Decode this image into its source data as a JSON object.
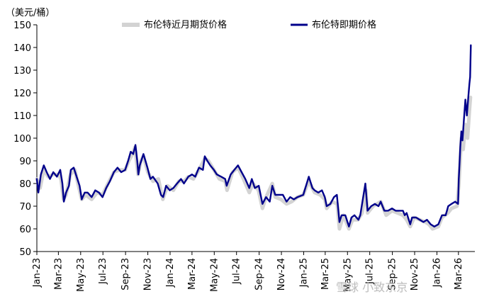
{
  "chart_data": {
    "type": "line",
    "title": "",
    "unit_label": "（美元/桶）",
    "ylim": [
      50,
      150
    ],
    "y_ticks": [
      50,
      60,
      70,
      80,
      90,
      100,
      110,
      120,
      130,
      140,
      150
    ],
    "x_tick_labels": [
      "Jan-23",
      "Mar-23",
      "May-23",
      "Jul-23",
      "Sep-23",
      "Nov-23",
      "Jan-24",
      "Mar-24",
      "May-24",
      "Jul-24",
      "Sep-24",
      "Nov-24",
      "Jan-25",
      "Mar-25",
      "May-25",
      "Jul-25",
      "Sep-25",
      "Nov-25",
      "Jan-26",
      "Mar-26"
    ],
    "x_range": [
      "2023-01-01",
      "2026-04-15"
    ],
    "grid": false,
    "legend_position": "top",
    "series": [
      {
        "name": "布伦特近月期货价格",
        "color": "#d3d3d3",
        "points": [
          [
            "2023-01-01",
            82
          ],
          [
            "2023-01-10",
            78
          ],
          [
            "2023-01-20",
            86
          ],
          [
            "2023-02-01",
            83
          ],
          [
            "2023-02-15",
            84
          ],
          [
            "2023-03-01",
            84
          ],
          [
            "2023-03-08",
            82
          ],
          [
            "2023-03-15",
            73
          ],
          [
            "2023-03-22",
            75
          ],
          [
            "2023-04-03",
            84
          ],
          [
            "2023-04-15",
            86
          ],
          [
            "2023-04-25",
            79
          ],
          [
            "2023-05-04",
            73
          ],
          [
            "2023-05-15",
            75
          ],
          [
            "2023-05-31",
            73
          ],
          [
            "2023-06-15",
            76
          ],
          [
            "2023-06-30",
            75
          ],
          [
            "2023-07-15",
            80
          ],
          [
            "2023-07-31",
            85
          ],
          [
            "2023-08-15",
            86
          ],
          [
            "2023-08-31",
            86
          ],
          [
            "2023-09-10",
            90
          ],
          [
            "2023-09-20",
            93
          ],
          [
            "2023-09-27",
            96
          ],
          [
            "2023-10-05",
            84
          ],
          [
            "2023-10-13",
            90
          ],
          [
            "2023-10-20",
            92
          ],
          [
            "2023-11-01",
            85
          ],
          [
            "2023-11-15",
            81
          ],
          [
            "2023-11-30",
            82
          ],
          [
            "2023-12-12",
            73
          ],
          [
            "2023-12-25",
            79
          ],
          [
            "2024-01-10",
            77
          ],
          [
            "2024-01-25",
            81
          ],
          [
            "2024-02-08",
            81
          ],
          [
            "2024-02-20",
            83
          ],
          [
            "2024-03-05",
            82
          ],
          [
            "2024-03-20",
            86
          ],
          [
            "2024-04-05",
            91
          ],
          [
            "2024-04-15",
            90
          ],
          [
            "2024-04-30",
            86
          ],
          [
            "2024-05-15",
            82
          ],
          [
            "2024-05-31",
            81
          ],
          [
            "2024-06-05",
            77
          ],
          [
            "2024-06-20",
            85
          ],
          [
            "2024-07-05",
            87
          ],
          [
            "2024-07-20",
            82
          ],
          [
            "2024-08-05",
            76
          ],
          [
            "2024-08-15",
            80
          ],
          [
            "2024-08-30",
            77
          ],
          [
            "2024-09-10",
            69
          ],
          [
            "2024-09-20",
            74
          ],
          [
            "2024-10-07",
            80
          ],
          [
            "2024-10-15",
            74
          ],
          [
            "2024-10-31",
            73
          ],
          [
            "2024-11-15",
            71
          ],
          [
            "2024-11-29",
            72
          ],
          [
            "2024-12-15",
            74
          ],
          [
            "2024-12-31",
            75
          ],
          [
            "2025-01-15",
            81
          ],
          [
            "2025-01-31",
            76
          ],
          [
            "2025-02-15",
            75
          ],
          [
            "2025-02-28",
            73
          ],
          [
            "2025-03-05",
            69
          ],
          [
            "2025-03-20",
            72
          ],
          [
            "2025-04-03",
            71
          ],
          [
            "2025-04-09",
            60
          ],
          [
            "2025-04-20",
            66
          ],
          [
            "2025-05-05",
            60
          ],
          [
            "2025-05-15",
            64
          ],
          [
            "2025-05-30",
            64
          ],
          [
            "2025-06-10",
            67
          ],
          [
            "2025-06-20",
            77
          ],
          [
            "2025-06-25",
            67
          ],
          [
            "2025-07-10",
            70
          ],
          [
            "2025-07-31",
            72
          ],
          [
            "2025-08-15",
            66
          ],
          [
            "2025-08-31",
            68
          ],
          [
            "2025-09-15",
            67
          ],
          [
            "2025-09-30",
            66
          ],
          [
            "2025-10-10",
            64
          ],
          [
            "2025-10-20",
            61
          ],
          [
            "2025-10-31",
            65
          ],
          [
            "2025-11-15",
            64
          ],
          [
            "2025-11-30",
            63
          ],
          [
            "2025-12-10",
            62
          ],
          [
            "2025-12-20",
            60
          ],
          [
            "2026-01-05",
            61
          ],
          [
            "2026-01-15",
            65
          ],
          [
            "2026-01-31",
            67
          ],
          [
            "2026-02-10",
            69
          ],
          [
            "2026-02-25",
            70
          ],
          [
            "2026-03-02",
            79
          ],
          [
            "2026-03-05",
            88
          ],
          [
            "2026-03-09",
            100
          ],
          [
            "2026-03-14",
            95
          ],
          [
            "2026-03-20",
            106
          ],
          [
            "2026-03-26",
            100
          ],
          [
            "2026-03-31",
            112
          ],
          [
            "2026-04-03",
            118
          ]
        ]
      },
      {
        "name": "布伦特即期价格",
        "color": "#00008b",
        "points": [
          [
            "2023-01-01",
            82
          ],
          [
            "2023-01-05",
            76
          ],
          [
            "2023-01-12",
            84
          ],
          [
            "2023-01-20",
            88
          ],
          [
            "2023-01-28",
            85
          ],
          [
            "2023-02-06",
            82
          ],
          [
            "2023-02-15",
            85
          ],
          [
            "2023-02-25",
            83
          ],
          [
            "2023-03-06",
            86
          ],
          [
            "2023-03-12",
            80
          ],
          [
            "2023-03-16",
            72
          ],
          [
            "2023-03-22",
            76
          ],
          [
            "2023-03-30",
            79
          ],
          [
            "2023-04-04",
            86
          ],
          [
            "2023-04-12",
            87
          ],
          [
            "2023-04-20",
            83
          ],
          [
            "2023-04-28",
            79
          ],
          [
            "2023-05-04",
            73
          ],
          [
            "2023-05-12",
            76
          ],
          [
            "2023-05-20",
            76
          ],
          [
            "2023-05-31",
            74
          ],
          [
            "2023-06-10",
            77
          ],
          [
            "2023-06-20",
            76
          ],
          [
            "2023-06-30",
            74
          ],
          [
            "2023-07-10",
            78
          ],
          [
            "2023-07-20",
            81
          ],
          [
            "2023-07-31",
            85
          ],
          [
            "2023-08-10",
            87
          ],
          [
            "2023-08-20",
            85
          ],
          [
            "2023-08-31",
            86
          ],
          [
            "2023-09-08",
            90
          ],
          [
            "2023-09-15",
            94
          ],
          [
            "2023-09-22",
            93
          ],
          [
            "2023-09-28",
            97
          ],
          [
            "2023-10-03",
            90
          ],
          [
            "2023-10-06",
            84
          ],
          [
            "2023-10-10",
            88
          ],
          [
            "2023-10-20",
            93
          ],
          [
            "2023-10-31",
            87
          ],
          [
            "2023-11-08",
            82
          ],
          [
            "2023-11-15",
            83
          ],
          [
            "2023-11-28",
            80
          ],
          [
            "2023-12-07",
            75
          ],
          [
            "2023-12-13",
            74
          ],
          [
            "2023-12-21",
            79
          ],
          [
            "2023-12-31",
            77
          ],
          [
            "2024-01-10",
            78
          ],
          [
            "2024-01-20",
            80
          ],
          [
            "2024-01-31",
            82
          ],
          [
            "2024-02-08",
            80
          ],
          [
            "2024-02-20",
            83
          ],
          [
            "2024-03-01",
            84
          ],
          [
            "2024-03-10",
            83
          ],
          [
            "2024-03-20",
            87
          ],
          [
            "2024-03-31",
            86
          ],
          [
            "2024-04-05",
            92
          ],
          [
            "2024-04-12",
            90
          ],
          [
            "2024-04-20",
            88
          ],
          [
            "2024-04-30",
            86
          ],
          [
            "2024-05-08",
            84
          ],
          [
            "2024-05-20",
            83
          ],
          [
            "2024-05-31",
            82
          ],
          [
            "2024-06-04",
            79
          ],
          [
            "2024-06-15",
            84
          ],
          [
            "2024-06-25",
            86
          ],
          [
            "2024-07-05",
            88
          ],
          [
            "2024-07-15",
            85
          ],
          [
            "2024-07-25",
            82
          ],
          [
            "2024-08-05",
            78
          ],
          [
            "2024-08-12",
            82
          ],
          [
            "2024-08-20",
            78
          ],
          [
            "2024-08-31",
            79
          ],
          [
            "2024-09-10",
            71
          ],
          [
            "2024-09-20",
            74
          ],
          [
            "2024-09-30",
            72
          ],
          [
            "2024-10-07",
            79
          ],
          [
            "2024-10-15",
            75
          ],
          [
            "2024-10-25",
            75
          ],
          [
            "2024-11-05",
            75
          ],
          [
            "2024-11-15",
            72
          ],
          [
            "2024-11-25",
            74
          ],
          [
            "2024-12-05",
            73
          ],
          [
            "2024-12-15",
            74
          ],
          [
            "2024-12-31",
            75
          ],
          [
            "2025-01-15",
            83
          ],
          [
            "2025-01-25",
            78
          ],
          [
            "2025-01-31",
            77
          ],
          [
            "2025-02-10",
            76
          ],
          [
            "2025-02-20",
            77
          ],
          [
            "2025-02-28",
            74
          ],
          [
            "2025-03-05",
            70
          ],
          [
            "2025-03-15",
            71
          ],
          [
            "2025-03-25",
            74
          ],
          [
            "2025-04-02",
            75
          ],
          [
            "2025-04-09",
            63
          ],
          [
            "2025-04-15",
            66
          ],
          [
            "2025-04-25",
            66
          ],
          [
            "2025-05-05",
            61
          ],
          [
            "2025-05-12",
            65
          ],
          [
            "2025-05-20",
            66
          ],
          [
            "2025-05-31",
            64
          ],
          [
            "2025-06-05",
            66
          ],
          [
            "2025-06-13",
            74
          ],
          [
            "2025-06-19",
            80
          ],
          [
            "2025-06-25",
            68
          ],
          [
            "2025-07-05",
            70
          ],
          [
            "2025-07-15",
            71
          ],
          [
            "2025-07-25",
            70
          ],
          [
            "2025-07-31",
            72
          ],
          [
            "2025-08-10",
            68
          ],
          [
            "2025-08-20",
            68
          ],
          [
            "2025-08-31",
            69
          ],
          [
            "2025-09-10",
            68
          ],
          [
            "2025-09-20",
            68
          ],
          [
            "2025-09-30",
            68
          ],
          [
            "2025-10-05",
            66
          ],
          [
            "2025-10-10",
            67
          ],
          [
            "2025-10-20",
            62
          ],
          [
            "2025-10-25",
            65
          ],
          [
            "2025-11-05",
            65
          ],
          [
            "2025-11-15",
            64
          ],
          [
            "2025-11-25",
            63
          ],
          [
            "2025-12-05",
            64
          ],
          [
            "2025-12-15",
            62
          ],
          [
            "2025-12-25",
            61
          ],
          [
            "2026-01-05",
            62
          ],
          [
            "2026-01-15",
            66
          ],
          [
            "2026-01-25",
            66
          ],
          [
            "2026-02-01",
            70
          ],
          [
            "2026-02-10",
            71
          ],
          [
            "2026-02-20",
            72
          ],
          [
            "2026-02-28",
            71
          ],
          [
            "2026-03-02",
            82
          ],
          [
            "2026-03-04",
            89
          ],
          [
            "2026-03-06",
            96
          ],
          [
            "2026-03-09",
            103
          ],
          [
            "2026-03-12",
            99
          ],
          [
            "2026-03-16",
            108
          ],
          [
            "2026-03-20",
            117
          ],
          [
            "2026-03-24",
            110
          ],
          [
            "2026-03-28",
            118
          ],
          [
            "2026-03-31",
            124
          ],
          [
            "2026-04-02",
            127
          ],
          [
            "2026-04-04",
            141
          ]
        ]
      }
    ]
  },
  "watermark": "雪球 小致东京"
}
